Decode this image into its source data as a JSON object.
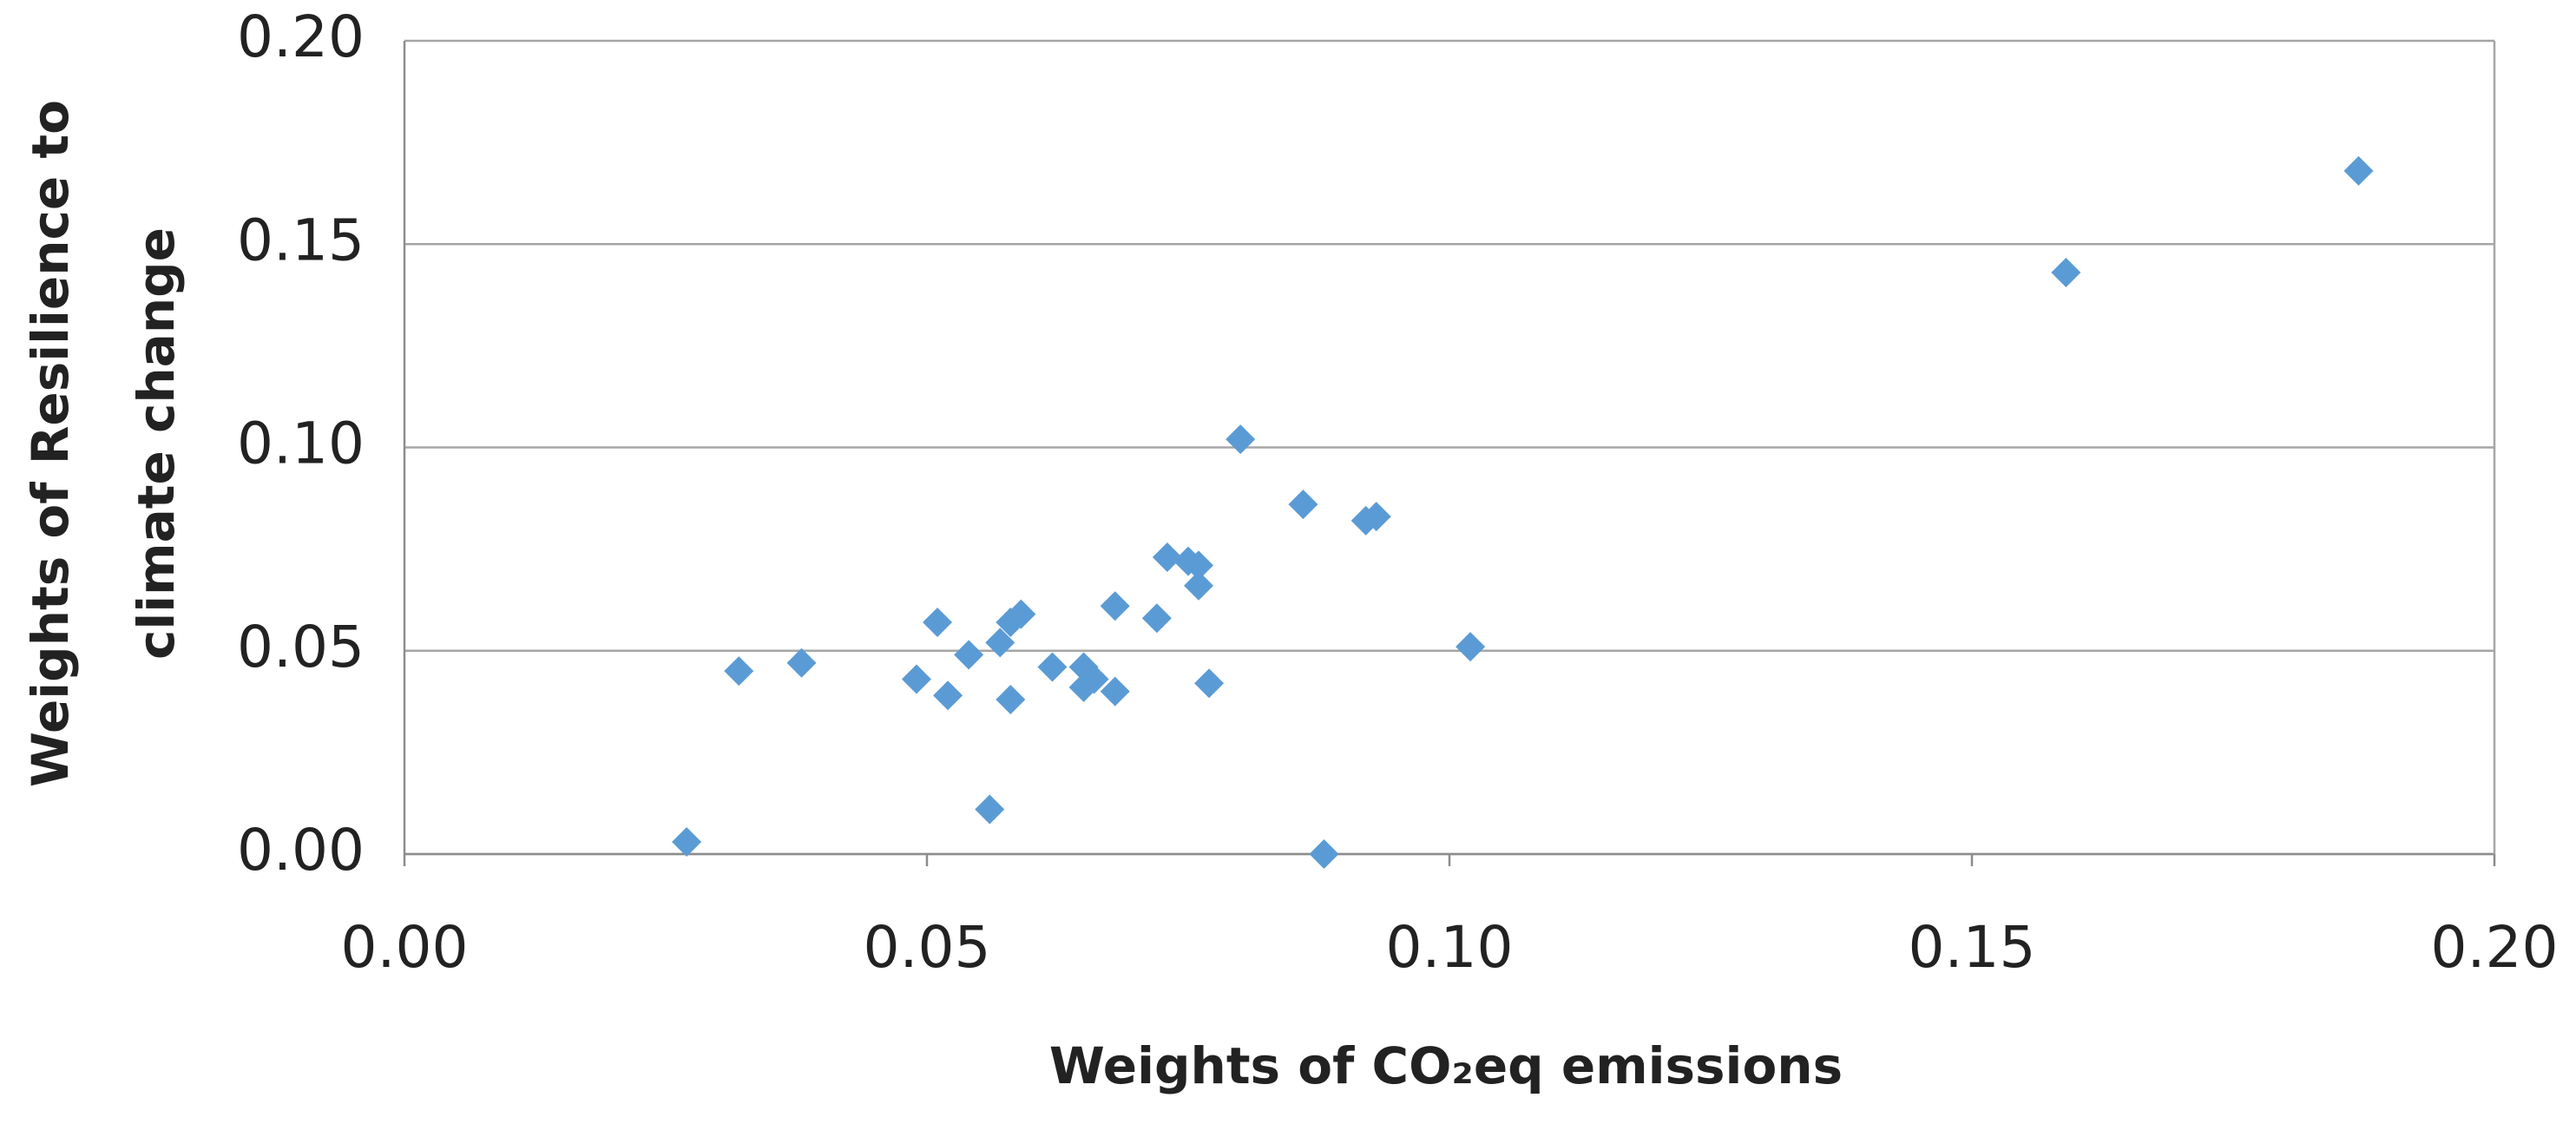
{
  "chart_data": {
    "type": "scatter",
    "x_label": "Weights of CO₂eq emissions",
    "y_label": [
      "Weights of Resilience to",
      "climate change"
    ],
    "color": "#5b9bd5",
    "grid": true,
    "xlim": [
      0,
      0.2
    ],
    "ylim": [
      0,
      0.2
    ],
    "xticks": [
      {
        "value": 0,
        "label": "0.00"
      },
      {
        "value": 0.05,
        "label": "0.05"
      },
      {
        "value": 0.1,
        "label": "0.10"
      },
      {
        "value": 0.15,
        "label": "0.15"
      },
      {
        "value": 0.2,
        "label": "0.20"
      }
    ],
    "yticks": [
      {
        "value": 0,
        "label": "0.00"
      },
      {
        "value": 0.05,
        "label": "0.05"
      },
      {
        "value": 0.1,
        "label": "0.10"
      },
      {
        "value": 0.15,
        "label": "0.15"
      },
      {
        "value": 0.2,
        "label": "0.20"
      }
    ],
    "x": [
      0.027,
      0.032,
      0.038,
      0.049,
      0.051,
      0.052,
      0.054,
      0.056,
      0.057,
      0.058,
      0.058,
      0.059,
      0.062,
      0.065,
      0.065,
      0.066,
      0.068,
      0.068,
      0.072,
      0.073,
      0.075,
      0.076,
      0.076,
      0.077,
      0.08,
      0.086,
      0.088,
      0.092,
      0.093,
      0.102,
      0.159,
      0.187
    ],
    "values": [
      0.003,
      0.045,
      0.047,
      0.043,
      0.057,
      0.039,
      0.049,
      0.011,
      0.052,
      0.038,
      0.057,
      0.059,
      0.046,
      0.046,
      0.041,
      0.043,
      0.04,
      0.061,
      0.058,
      0.073,
      0.072,
      0.071,
      0.066,
      0.042,
      0.102,
      0.086,
      0.0,
      0.082,
      0.083,
      0.051,
      0.143,
      0.168
    ]
  }
}
